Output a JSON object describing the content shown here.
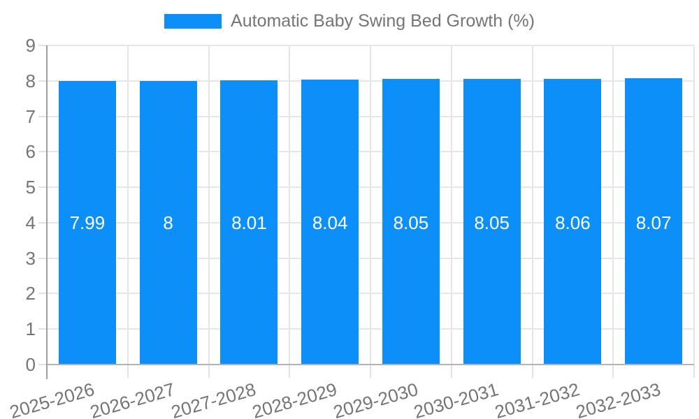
{
  "legend": {
    "label": "Automatic Baby Swing Bed Growth (%)"
  },
  "chart_data": {
    "type": "bar",
    "title": "Automatic Baby Swing Bed Growth (%)",
    "categories": [
      "2025-2026",
      "2026-2027",
      "2027-2028",
      "2028-2029",
      "2029-2030",
      "2030-2031",
      "2031-2032",
      "2032-2033"
    ],
    "values": [
      7.99,
      8,
      8.01,
      8.04,
      8.05,
      8.05,
      8.06,
      8.07
    ],
    "value_labels": [
      "7.99",
      "8",
      "8.01",
      "8.04",
      "8.05",
      "8.05",
      "8.06",
      "8.07"
    ],
    "xlabel": "",
    "ylabel": "",
    "ylim": [
      0,
      9
    ],
    "yticks": [
      0,
      1,
      2,
      3,
      4,
      5,
      6,
      7,
      8,
      9
    ],
    "grid": true,
    "legend_position": "top-center",
    "x_tick_rotation_deg": -16,
    "bar_labels_inside": true
  },
  "colors": {
    "bar": "#0d8ff9",
    "grid": "#e6e6e6",
    "tick": "#e2e2e2",
    "axis": "#9e9e9e",
    "baseline": "#b3b3b3",
    "text": "#757575",
    "value_label": "#ffffff",
    "background": "#ffffff"
  }
}
